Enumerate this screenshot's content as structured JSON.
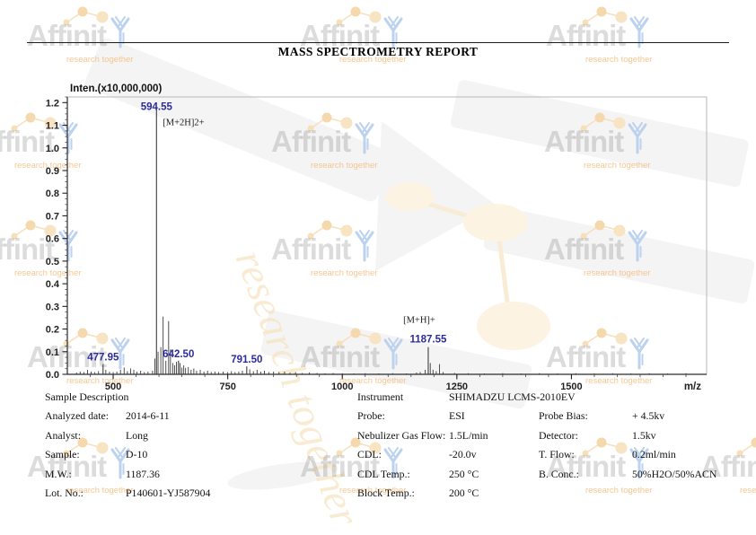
{
  "header": {
    "title": "MASS SPECTROMETRY REPORT"
  },
  "watermark": {
    "brand": "Affinity",
    "tagline": "research together"
  },
  "chart_data": {
    "type": "bar",
    "title": "Inten.(x10,000,000)",
    "xlabel": "m/z",
    "ylabel": "Inten.(x10,000,000)",
    "xlim": [
      400,
      1795
    ],
    "ylim": [
      0,
      1.225
    ],
    "x_ticks": [
      500,
      750,
      1000,
      1250,
      1500
    ],
    "x_minor_step": 50,
    "y_ticks": [
      0.0,
      0.1,
      0.2,
      0.3,
      0.4,
      0.5,
      0.6,
      0.7,
      0.8,
      0.9,
      1.0,
      1.1,
      1.2
    ],
    "y_minor_step": 0.025,
    "grid": false,
    "label_color": "#2b2b9e",
    "labeled_peaks": [
      {
        "mz": 477.95,
        "intensity": 0.045,
        "label": "477.95"
      },
      {
        "mz": 594.55,
        "intensity": 1.18,
        "label": "594.55",
        "annotation": "[M+2H]2+",
        "annotation_side": "below-label"
      },
      {
        "mz": 642.5,
        "intensity": 0.06,
        "label": "642.50"
      },
      {
        "mz": 791.5,
        "intensity": 0.035,
        "label": "791.50"
      },
      {
        "mz": 1187.55,
        "intensity": 0.12,
        "label": "1187.55",
        "annotation": "[M+H]+",
        "annotation_side": "above-label"
      }
    ],
    "peaks": [
      [
        420,
        0.008
      ],
      [
        428,
        0.012
      ],
      [
        436,
        0.01
      ],
      [
        444,
        0.02
      ],
      [
        452,
        0.012
      ],
      [
        460,
        0.01
      ],
      [
        468,
        0.014
      ],
      [
        484,
        0.02
      ],
      [
        492,
        0.012
      ],
      [
        500,
        0.01
      ],
      [
        508,
        0.012
      ],
      [
        516,
        0.02
      ],
      [
        524,
        0.03
      ],
      [
        531,
        0.014
      ],
      [
        538,
        0.026
      ],
      [
        545,
        0.02
      ],
      [
        552,
        0.012
      ],
      [
        560,
        0.016
      ],
      [
        568,
        0.01
      ],
      [
        576,
        0.012
      ],
      [
        586,
        0.016
      ],
      [
        591,
        0.07
      ],
      [
        598,
        0.1
      ],
      [
        604,
        0.12
      ],
      [
        609,
        0.255
      ],
      [
        615,
        0.06
      ],
      [
        621,
        0.235
      ],
      [
        625,
        0.11
      ],
      [
        630,
        0.05
      ],
      [
        634,
        0.04
      ],
      [
        638,
        0.055
      ],
      [
        646,
        0.05
      ],
      [
        650,
        0.03
      ],
      [
        654,
        0.04
      ],
      [
        658,
        0.028
      ],
      [
        664,
        0.032
      ],
      [
        670,
        0.02
      ],
      [
        676,
        0.026
      ],
      [
        682,
        0.016
      ],
      [
        690,
        0.02
      ],
      [
        698,
        0.012
      ],
      [
        706,
        0.016
      ],
      [
        714,
        0.01
      ],
      [
        722,
        0.012
      ],
      [
        730,
        0.01
      ],
      [
        740,
        0.012
      ],
      [
        750,
        0.01
      ],
      [
        758,
        0.014
      ],
      [
        766,
        0.01
      ],
      [
        774,
        0.012
      ],
      [
        782,
        0.016
      ],
      [
        798,
        0.022
      ],
      [
        806,
        0.014
      ],
      [
        814,
        0.02
      ],
      [
        822,
        0.012
      ],
      [
        830,
        0.016
      ],
      [
        840,
        0.01
      ],
      [
        850,
        0.012
      ],
      [
        862,
        0.01
      ],
      [
        874,
        0.012
      ],
      [
        886,
        0.008
      ],
      [
        898,
        0.01
      ],
      [
        912,
        0.006
      ],
      [
        928,
        0.008
      ],
      [
        945,
        0.006
      ],
      [
        962,
        0.005
      ],
      [
        980,
        0.006
      ],
      [
        1000,
        0.005
      ],
      [
        1025,
        0.004
      ],
      [
        1050,
        0.005
      ],
      [
        1080,
        0.004
      ],
      [
        1110,
        0.005
      ],
      [
        1140,
        0.004
      ],
      [
        1162,
        0.008
      ],
      [
        1170,
        0.01
      ],
      [
        1181,
        0.02
      ],
      [
        1192,
        0.05
      ],
      [
        1198,
        0.02
      ],
      [
        1205,
        0.014
      ],
      [
        1212,
        0.045
      ],
      [
        1220,
        0.01
      ],
      [
        1245,
        0.006
      ],
      [
        1275,
        0.005
      ],
      [
        1310,
        0.004
      ],
      [
        1350,
        0.005
      ],
      [
        1390,
        0.004
      ],
      [
        1430,
        0.005
      ],
      [
        1470,
        0.004
      ],
      [
        1510,
        0.005
      ],
      [
        1550,
        0.004
      ],
      [
        1590,
        0.005
      ],
      [
        1630,
        0.004
      ],
      [
        1670,
        0.005
      ],
      [
        1710,
        0.004
      ],
      [
        1750,
        0.005
      ]
    ]
  },
  "sample": {
    "section_title": "Sample Description",
    "rows": [
      {
        "label": "Analyzed date:",
        "value": "2014-6-11"
      },
      {
        "label": "Analyst:",
        "value": "Long"
      },
      {
        "label": "Sample:",
        "value": "D-10"
      },
      {
        "label": "M.W.:",
        "value": "1187.36"
      },
      {
        "label": "Lot. No.:",
        "value": "P140601-YJ587904"
      }
    ]
  },
  "instrument": {
    "rows": [
      {
        "label": "Instrument",
        "value": "SHIMADZU LCMS-2010EV",
        "label2": "",
        "value2": ""
      },
      {
        "label": "Probe:",
        "value": "ESI",
        "label2": "Probe Bias:",
        "value2": "+ 4.5kv"
      },
      {
        "label": "Nebulizer Gas Flow:",
        "value": "1.5L/min",
        "label2": "Detector:",
        "value2": "1.5kv"
      },
      {
        "label": "CDL:",
        "value": "-20.0v",
        "label2": "T. Flow:",
        "value2": "0.2ml/min"
      },
      {
        "label": "CDL Temp.:",
        "value": "250 °C",
        "label2": "B. Conc.:",
        "value2": "50%H2O/50%ACN"
      },
      {
        "label": "Block Temp.:",
        "value": "200 °C",
        "label2": "",
        "value2": ""
      }
    ]
  }
}
